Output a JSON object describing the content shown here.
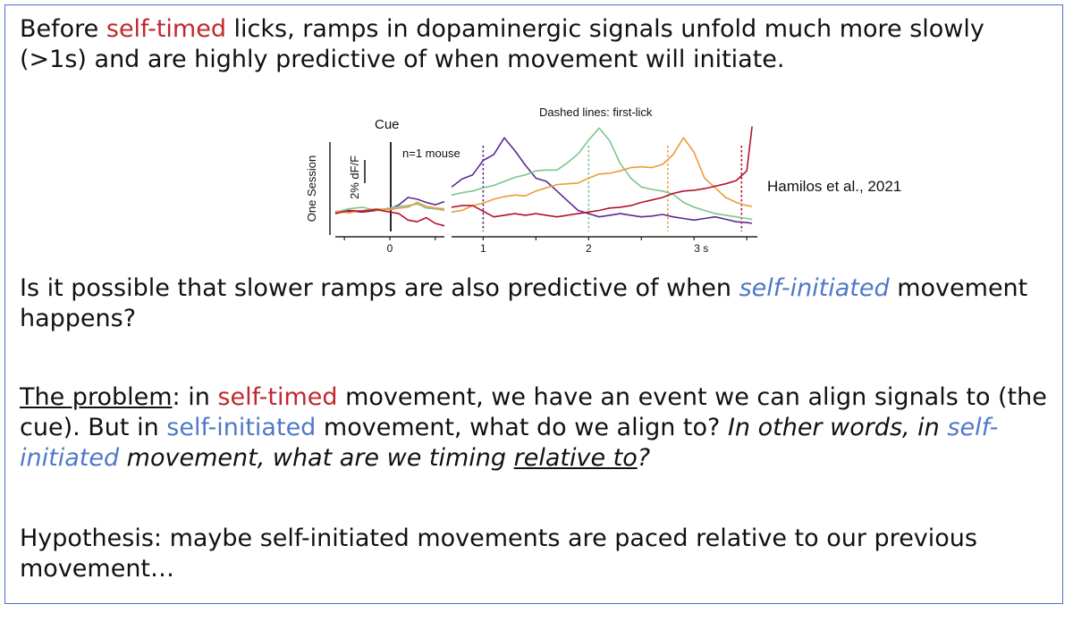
{
  "slide": {
    "para1": {
      "part1": "Before ",
      "self_timed": "self-timed",
      "part2": " licks, ramps in dopaminergic signals unfold much more slowly (>1s) and are highly predictive of when movement will initiate."
    },
    "para2": {
      "part1": "Is it possible that slower ramps are also predictive of when ",
      "self_initiated": "self-initiated",
      "part2": " movement happens?"
    },
    "para3": {
      "heading": "The problem",
      "part1": ": in ",
      "self_timed": "self-timed",
      "part2": " movement, we have an event we can align signals to (the cue). But in ",
      "self_initiated_1": "self-initiated",
      "part3": " movement, what do we align to? ",
      "italic_part1": "In other words, in ",
      "self_initiated_2": "self-initiated",
      "italic_part2": " movement, what are we timing ",
      "relative_to": "relative to",
      "question_mark": "?"
    },
    "para4": {
      "text": "Hypothesis: maybe self-initiated movements are paced relative to our previous movement…"
    },
    "citation": "Hamilos et al., 2021"
  },
  "colors": {
    "frame": "#4a72c4",
    "red_text": "#c0282d",
    "blue_text": "#4f78c8",
    "purple": "#5b2a91",
    "green": "#7fc48a",
    "orange": "#ee9a3a",
    "crimson": "#b3122e"
  },
  "chart_data": {
    "type": "line",
    "title": "Dashed lines: first-lick",
    "ylabel": "One Session",
    "scale_bar_label": "2% dF/F",
    "cue_label": "Cue",
    "mouse_label": "n=1 mouse",
    "panels": [
      {
        "name": "cue-aligned",
        "tick_labels": [
          "0"
        ],
        "xlim": [
          -0.6,
          0.6
        ],
        "x": [
          -0.6,
          -0.45,
          -0.3,
          -0.15,
          0.0,
          0.1,
          0.2,
          0.3,
          0.4,
          0.5,
          0.6
        ],
        "series": [
          {
            "color": "purple",
            "values": [
              0.3,
              0.5,
              0.4,
              0.6,
              0.8,
              1.3,
              2.2,
              2.0,
              1.6,
              1.3,
              1.7
            ]
          },
          {
            "color": "green",
            "values": [
              0.4,
              0.8,
              1.0,
              0.6,
              0.9,
              1.1,
              1.2,
              1.4,
              0.9,
              0.8,
              0.6
            ]
          },
          {
            "color": "orange",
            "values": [
              0.5,
              0.3,
              0.6,
              0.8,
              0.7,
              0.9,
              1.0,
              1.6,
              1.1,
              0.9,
              0.8
            ]
          },
          {
            "color": "crimson",
            "values": [
              0.2,
              0.6,
              0.5,
              0.7,
              0.4,
              0.2,
              -0.6,
              -0.8,
              -0.3,
              -1.0,
              -1.3
            ]
          }
        ]
      },
      {
        "name": "post-cue",
        "tick_labels": [
          "1",
          "2",
          "3 s"
        ],
        "xlim": [
          0.7,
          3.6
        ],
        "x": [
          0.7,
          0.8,
          0.9,
          1.0,
          1.1,
          1.2,
          1.3,
          1.4,
          1.5,
          1.6,
          1.7,
          1.8,
          1.9,
          2.0,
          2.1,
          2.2,
          2.3,
          2.4,
          2.5,
          2.6,
          2.7,
          2.8,
          2.9,
          3.0,
          3.1,
          3.2,
          3.3,
          3.4,
          3.5,
          3.55
        ],
        "first_lick_times": [
          {
            "color": "purple",
            "x": 1.0
          },
          {
            "color": "green",
            "x": 2.0
          },
          {
            "color": "orange",
            "x": 2.75
          },
          {
            "color": "crimson",
            "x": 3.45
          }
        ],
        "series": [
          {
            "color": "purple",
            "values": [
              3.5,
              4.5,
              5.0,
              6.8,
              7.5,
              9.6,
              8.0,
              6.2,
              4.6,
              4.2,
              3.0,
              1.8,
              0.6,
              0.2,
              -0.2,
              0.0,
              0.2,
              0.0,
              -0.2,
              -0.1,
              0.1,
              -0.2,
              -0.4,
              -0.6,
              -0.4,
              -0.2,
              -0.5,
              -0.8,
              -0.9,
              -1.0
            ]
          },
          {
            "color": "green",
            "values": [
              2.5,
              2.8,
              3.0,
              3.4,
              3.7,
              4.2,
              4.7,
              5.0,
              5.5,
              5.6,
              5.6,
              6.5,
              7.6,
              9.3,
              10.8,
              9.2,
              6.4,
              4.6,
              3.5,
              3.2,
              3.0,
              2.6,
              1.6,
              1.0,
              0.6,
              0.2,
              0.0,
              -0.2,
              -0.4,
              -0.5
            ]
          },
          {
            "color": "orange",
            "values": [
              0.4,
              0.6,
              1.2,
              1.5,
              2.0,
              2.3,
              2.5,
              2.4,
              3.0,
              3.4,
              3.8,
              3.9,
              4.0,
              4.6,
              5.1,
              5.2,
              5.5,
              5.9,
              6.0,
              5.9,
              6.3,
              7.5,
              9.6,
              7.8,
              4.6,
              3.4,
              2.2,
              1.6,
              1.2,
              1.1
            ]
          },
          {
            "color": "crimson",
            "values": [
              1.0,
              1.2,
              1.2,
              0.5,
              -0.2,
              0.0,
              0.2,
              0.0,
              0.2,
              0.0,
              -0.2,
              0.0,
              0.2,
              0.4,
              0.6,
              0.9,
              1.0,
              1.2,
              1.6,
              1.9,
              2.2,
              2.7,
              3.0,
              3.1,
              3.3,
              3.6,
              3.9,
              4.3,
              5.5,
              11.0
            ]
          }
        ]
      }
    ]
  }
}
